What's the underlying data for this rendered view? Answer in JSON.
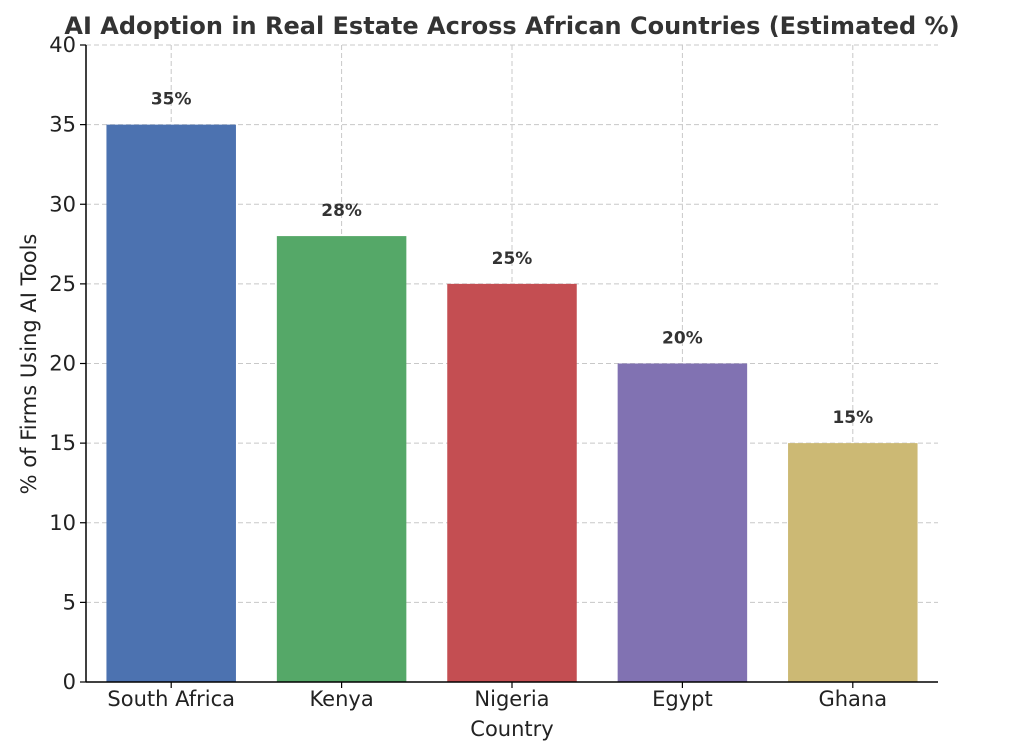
{
  "chart_data": {
    "type": "bar",
    "title": "AI Adoption in Real Estate Across African Countries (Estimated %)",
    "xlabel": "Country",
    "ylabel": "% of Firms Using AI Tools",
    "categories": [
      "South Africa",
      "Kenya",
      "Nigeria",
      "Egypt",
      "Ghana"
    ],
    "values": [
      35,
      28,
      25,
      20,
      15
    ],
    "data_labels": [
      "35%",
      "28%",
      "25%",
      "20%",
      "15%"
    ],
    "colors": [
      "#4c72b0",
      "#55a868",
      "#c44e52",
      "#8172b2",
      "#ccb974"
    ],
    "ylim": [
      0,
      40
    ],
    "yticks": [
      0,
      5,
      10,
      15,
      20,
      25,
      30,
      35,
      40
    ],
    "grid": true,
    "legend": false
  }
}
